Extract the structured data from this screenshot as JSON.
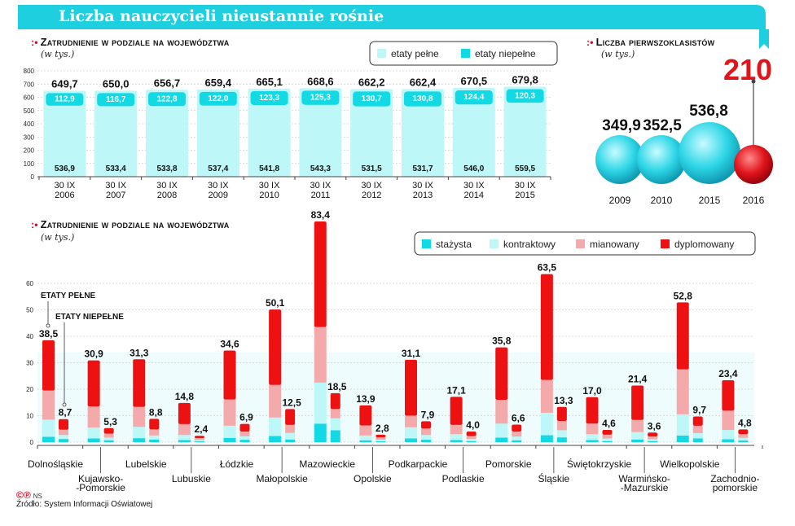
{
  "header": {
    "title": "Liczba nauczycieli nieustannie rośnie"
  },
  "colors": {
    "teal": "#12d9e3",
    "light_teal": "#bdf7f8",
    "pink": "#f4aaaa",
    "red": "#ee1111",
    "ball_red": "#e0151c",
    "banner": "#1ecfe0",
    "orange_rule": "#e0400a"
  },
  "chart_data": [
    {
      "id": "top",
      "type": "bar",
      "title": "Zatrudnienie w podziale na województwa",
      "unit": "(w tys.)",
      "ylim": [
        0,
        800
      ],
      "yticks": [
        0,
        100,
        200,
        300,
        400,
        500,
        600,
        700,
        800
      ],
      "categories": [
        "30 IX|2006",
        "30 IX|2007",
        "30 IX|2008",
        "30 IX|2009",
        "30 IX|2010",
        "30 IX|2011",
        "30 IX|2012",
        "30 IX|2013",
        "30 IX|2014",
        "30 IX|2015"
      ],
      "series": [
        {
          "name": "etaty pełne",
          "values": [
            536.9,
            533.4,
            533.8,
            537.4,
            541.8,
            543.3,
            531.5,
            531.7,
            546.0,
            559.5
          ]
        },
        {
          "name": "etaty niepełne",
          "values": [
            112.9,
            116.7,
            122.8,
            122.0,
            123.3,
            125.3,
            130.7,
            130.8,
            124.4,
            120.3
          ]
        }
      ],
      "full_labels": [
        "536,9",
        "533,4",
        "533,8",
        "537,4",
        "541,8",
        "543,3",
        "531,5",
        "531,7",
        "546,0",
        "559,5"
      ],
      "part_labels": [
        "112,9",
        "116,7",
        "122,8",
        "122,0",
        "123,3",
        "125,3",
        "130,7",
        "130,8",
        "124,4",
        "120,3"
      ],
      "total_labels": [
        "649,7",
        "650,0",
        "656,7",
        "659,4",
        "665,1",
        "668,6",
        "662,2",
        "662,4",
        "670,5",
        "679,8"
      ],
      "legend": [
        "etaty pełne",
        "etaty niepełne"
      ]
    },
    {
      "id": "balls",
      "type": "bubble",
      "title": "Liczba pierwszoklasistów",
      "unit": "(w tys.)",
      "categories": [
        "2009",
        "2010",
        "2015",
        "2016"
      ],
      "values": [
        349.9,
        352.5,
        536.8,
        210
      ],
      "labels": [
        "349,9",
        "352,5",
        "536,8",
        "210"
      ]
    },
    {
      "id": "bottom",
      "type": "bar",
      "title": "Zatrudnienie w podziale na województwa",
      "unit": "(w tys.)",
      "ylim": [
        0,
        65
      ],
      "yticks": [
        0,
        10,
        20,
        30,
        40,
        50,
        60
      ],
      "categories": [
        "Dolnośląskie",
        "Kujawsko-|-Pomorskie",
        "Lubelskie",
        "Lubuskie",
        "Łódzkie",
        "Małopolskie",
        "Mazowieckie",
        "Opolskie",
        "Podkarpackie",
        "Podlaskie",
        "Pomorskie",
        "Śląskie",
        "Świętokrzyskie",
        "Warmińsko-|-Mazurskie",
        "Wielkopolskie",
        "Zachodnio-|pomorskie"
      ],
      "legend": [
        "stażysta",
        "kontraktowy",
        "mianowany",
        "dyplomowany"
      ],
      "full": {
        "stazysta": [
          2,
          1.4,
          1.5,
          0.8,
          1.6,
          2.3,
          7,
          0.7,
          1.4,
          0.8,
          1.7,
          2.6,
          0.8,
          1,
          2.5,
          1.1
        ],
        "kontraktowy": [
          6.5,
          4.1,
          4.3,
          1.9,
          4.6,
          7,
          15.5,
          1.8,
          4.2,
          2.2,
          5.3,
          8.5,
          2.2,
          2.8,
          8,
          3.5
        ],
        "mianowany": [
          11,
          8,
          7.5,
          4.1,
          9.9,
          12.3,
          21,
          3.8,
          4.4,
          3.5,
          9,
          12.4,
          4,
          4.6,
          17,
          7.3
        ],
        "dyplomowany": [
          19,
          17.4,
          18,
          8,
          18.5,
          28.5,
          39.9,
          7.6,
          21.1,
          10.6,
          19.8,
          40,
          10,
          13,
          25.3,
          11.5
        ],
        "totals": [
          "38,5",
          "30,9",
          "31,3",
          "14,8",
          "34,6",
          "50,1",
          "83,4",
          "13,9",
          "31,1",
          "17,1",
          "35,8",
          "63,5",
          "17,0",
          "21,4",
          "52,8",
          "23,4"
        ]
      },
      "part": {
        "stazysta": [
          1.2,
          0.7,
          1,
          0.3,
          0.9,
          1,
          4.5,
          0.3,
          0.9,
          0.4,
          0.7,
          1.8,
          0.4,
          0.4,
          1.4,
          0.6
        ],
        "kontraktowy": [
          1.5,
          1,
          1.5,
          0.5,
          1.3,
          2.5,
          4.5,
          0.6,
          1.8,
          0.8,
          1.4,
          2.7,
          1,
          0.7,
          2,
          1
        ],
        "mianowany": [
          2,
          1.5,
          2.3,
          0.7,
          1.8,
          3,
          3.5,
          0.9,
          2.4,
          1.1,
          1.9,
          3.5,
          1.4,
          1,
          2.8,
          1.4
        ],
        "dyplomowany": [
          4,
          2.1,
          4,
          0.9,
          2.9,
          6,
          6,
          1,
          2.8,
          1.7,
          2.6,
          5.3,
          1.8,
          1.5,
          3.5,
          1.8
        ],
        "totals": [
          "8,7",
          "5,3",
          "8,8",
          "2,4",
          "6,9",
          "12,5",
          "18,5",
          "2,8",
          "7,9",
          "4,0",
          "6,6",
          "13,3",
          "4,6",
          "3,6",
          "9,7",
          "4,8"
        ]
      },
      "annotations": [
        "ETATY PEŁNE",
        "ETATY NIEPEŁNE"
      ]
    }
  ],
  "footer": {
    "logo": "©℗",
    "logo_suffix": "NS",
    "source": "Źródło: System Informacji Oświatowej"
  }
}
